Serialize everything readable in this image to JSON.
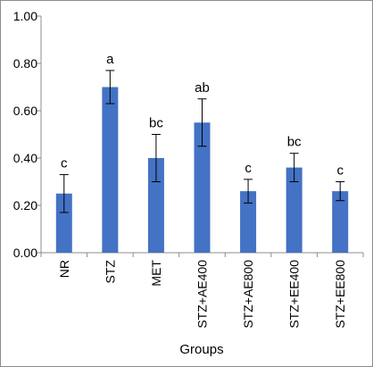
{
  "chart_data": {
    "type": "bar",
    "title": "",
    "xlabel": "Groups",
    "ylabel": "",
    "ylim": [
      0,
      1.0
    ],
    "ytick_step": 0.2,
    "ytick_labels": [
      "0.00",
      "0.20",
      "0.40",
      "0.60",
      "0.80",
      "1.00"
    ],
    "grid": false,
    "legend": "none",
    "categories": [
      "NR",
      "STZ",
      "MET",
      "STZ+AE400",
      "STZ+AE800",
      "STZ+EE400",
      "STZ+EE800"
    ],
    "series": [
      {
        "values": [
          0.25,
          0.7,
          0.4,
          0.55,
          0.26,
          0.36,
          0.26
        ],
        "errors": [
          0.08,
          0.07,
          0.1,
          0.1,
          0.05,
          0.06,
          0.04
        ],
        "annotations": [
          "c",
          "a",
          "bc",
          "ab",
          "c",
          "bc",
          "c"
        ],
        "color": "#4472c4"
      }
    ]
  }
}
